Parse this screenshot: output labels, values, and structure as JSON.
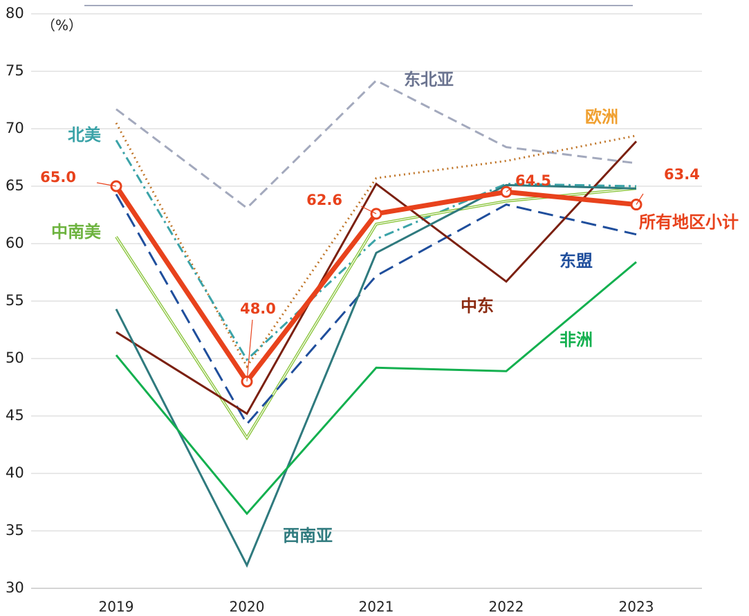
{
  "chart_data": {
    "type": "line",
    "y_unit": "（%）",
    "categories": [
      "2019",
      "2020",
      "2021",
      "2022",
      "2023"
    ],
    "ylim": [
      30,
      80
    ],
    "yticks": [
      30,
      35,
      40,
      45,
      50,
      55,
      60,
      65,
      70,
      75,
      80
    ],
    "grid": true,
    "series": [
      {
        "name": "东北亚",
        "color": "#a3a9bd",
        "dash": "dashed",
        "values": [
          71.7,
          63.1,
          74.2,
          68.4,
          67.0
        ]
      },
      {
        "name": "欧洲",
        "color": "#c0762a",
        "dash": "dotted",
        "values": [
          70.5,
          49.3,
          65.7,
          67.2,
          69.4
        ]
      },
      {
        "name": "北美",
        "color": "#3ba3a8",
        "dash": "dashdot",
        "values": [
          69.0,
          49.9,
          60.4,
          65.2,
          65.0
        ]
      },
      {
        "name": "中南美",
        "color": "#8cc63f",
        "dash": "double",
        "values": [
          60.6,
          43.1,
          61.7,
          63.7,
          64.8
        ]
      },
      {
        "name": "东盟",
        "color": "#1f4e9c",
        "dash": "longdash",
        "values": [
          64.3,
          44.3,
          57.2,
          63.4,
          60.8
        ]
      },
      {
        "name": "中东",
        "color": "#7b2010",
        "dash": "solid",
        "values": [
          52.3,
          45.2,
          65.2,
          56.7,
          68.9
        ]
      },
      {
        "name": "西南亚",
        "color": "#2f7a7e",
        "dash": "solid",
        "values": [
          54.3,
          32.0,
          59.2,
          65.1,
          64.8
        ]
      },
      {
        "name": "非洲",
        "color": "#13b04f",
        "dash": "solid",
        "values": [
          50.3,
          36.5,
          49.2,
          48.9,
          58.4
        ]
      },
      {
        "name": "所有地区小计",
        "color": "#e8421c",
        "dash": "thick",
        "values": [
          65.0,
          48.0,
          62.6,
          64.5,
          63.4
        ],
        "value_labels": [
          "65.0",
          "48.0",
          "62.6",
          "64.5",
          "63.4"
        ]
      }
    ]
  }
}
